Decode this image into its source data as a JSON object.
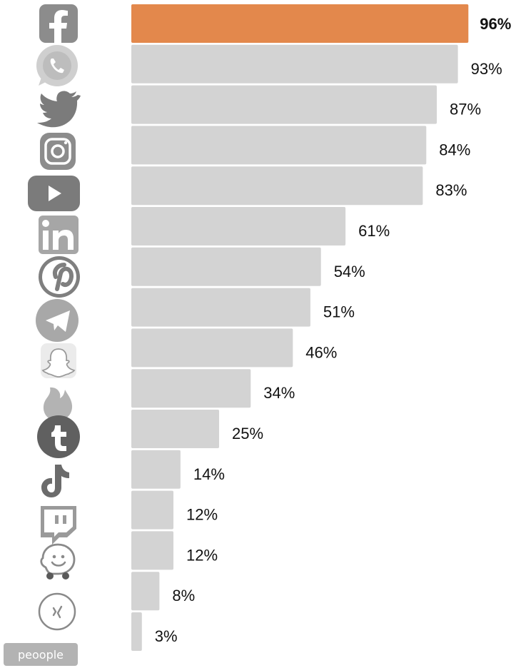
{
  "chart_data": {
    "type": "bar",
    "orientation": "horizontal",
    "categories": [
      "facebook-icon",
      "whatsapp-icon",
      "twitter-icon",
      "instagram-icon",
      "youtube-icon",
      "linkedin-icon",
      "pinterest-icon",
      "telegram-icon",
      "snapchat-icon",
      "tinder-icon",
      "tumblr-icon",
      "tiktok-icon",
      "twitch-icon",
      "waze-icon",
      "xing-icon",
      "peoople-logo"
    ],
    "values": [
      96,
      93,
      87,
      84,
      83,
      61,
      54,
      51,
      46,
      34,
      25,
      14,
      12,
      12,
      8,
      3
    ],
    "value_labels": [
      "96%",
      "93%",
      "87%",
      "84%",
      "83%",
      "61%",
      "54%",
      "51%",
      "46%",
      "34%",
      "25%",
      "14%",
      "12%",
      "12%",
      "8%",
      "3%"
    ],
    "xlim": [
      0,
      100
    ],
    "highlight_index": 0,
    "colors": {
      "highlight": "#E3884C",
      "bar": "#D3D3D3",
      "icon": "#8C8C8C",
      "icon_light": "#B5B5B5"
    },
    "logo_text": "peoople",
    "grid": false
  }
}
